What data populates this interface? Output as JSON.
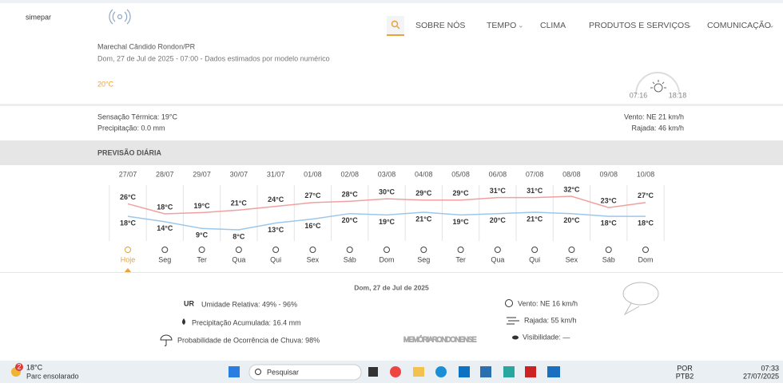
{
  "header": {
    "logo": "simepar",
    "nav": [
      "SOBRE NÓS",
      "TEMPO",
      "CLIMA",
      "PRODUTOS E SERVIÇOS",
      "COMUNICAÇÃO"
    ]
  },
  "location": {
    "title": "Marechal Cândido Rondon/PR",
    "subtitle": "Dom, 27 de Jul de 2025 - 07:00 - Dados estimados por modelo numérico",
    "temperature": "20°C",
    "sunrise": "07:16",
    "sunset": "18:18"
  },
  "conditions": {
    "feels_like": "Sensação Térmica: 19°C",
    "precipitation": "Precipitação: 0.0 mm",
    "wind": "Vento: NE 21 km/h",
    "gust": "Rajada: 46 km/h"
  },
  "forecast": {
    "title": "PREVISÃO DIÁRIA",
    "dates": [
      "27/07",
      "28/07",
      "29/07",
      "30/07",
      "31/07",
      "01/08",
      "02/08",
      "03/08",
      "04/08",
      "05/08",
      "06/08",
      "07/08",
      "08/08",
      "09/08",
      "10/08"
    ],
    "max": [
      26,
      18,
      19,
      21,
      24,
      27,
      28,
      30,
      29,
      29,
      31,
      31,
      32,
      23,
      27
    ],
    "max_labels": [
      "26°C",
      "18°C",
      "19°C",
      "21°C",
      "24°C",
      "27°C",
      "28°C",
      "30°C",
      "29°C",
      "29°C",
      "31°C",
      "31°C",
      "32°C",
      "23°C",
      "27°C"
    ],
    "min": [
      18,
      14,
      9,
      8,
      13,
      16,
      20,
      19,
      21,
      19,
      20,
      21,
      20,
      18,
      18
    ],
    "min_labels": [
      "18°C",
      "14°C",
      "9°C",
      "8°C",
      "13°C",
      "16°C",
      "20°C",
      "19°C",
      "21°C",
      "19°C",
      "20°C",
      "21°C",
      "20°C",
      "18°C",
      "18°C"
    ],
    "weekdays": [
      "Hoje",
      "Seg",
      "Ter",
      "Qua",
      "Qui",
      "Sex",
      "Sáb",
      "Dom",
      "Seg",
      "Ter",
      "Qua",
      "Qui",
      "Sex",
      "Sáb",
      "Dom"
    ]
  },
  "detail": {
    "date": "Dom, 27 de Jul de 2025",
    "ur_tag": "UR",
    "humidity": "Umidade Relativa: 49% - 96%",
    "rain": "Precipitação Acumulada: 16.4 mm",
    "rain_prob": "Probabilidade de Ocorrência de Chuva: 98%",
    "wind": "Vento: NE 16 km/h",
    "gust": "Rajada: 55 km/h",
    "visibility": "Visibilidade: —"
  },
  "watermark": "MEMÓRIARONDONENSE",
  "taskbar": {
    "badge": "2",
    "temp": "18°C",
    "weather": "Parc ensolarado",
    "search": "Pesquisar",
    "lang1": "POR",
    "lang2": "PTB2",
    "time": "07:33",
    "date": "27/07/2025"
  }
}
